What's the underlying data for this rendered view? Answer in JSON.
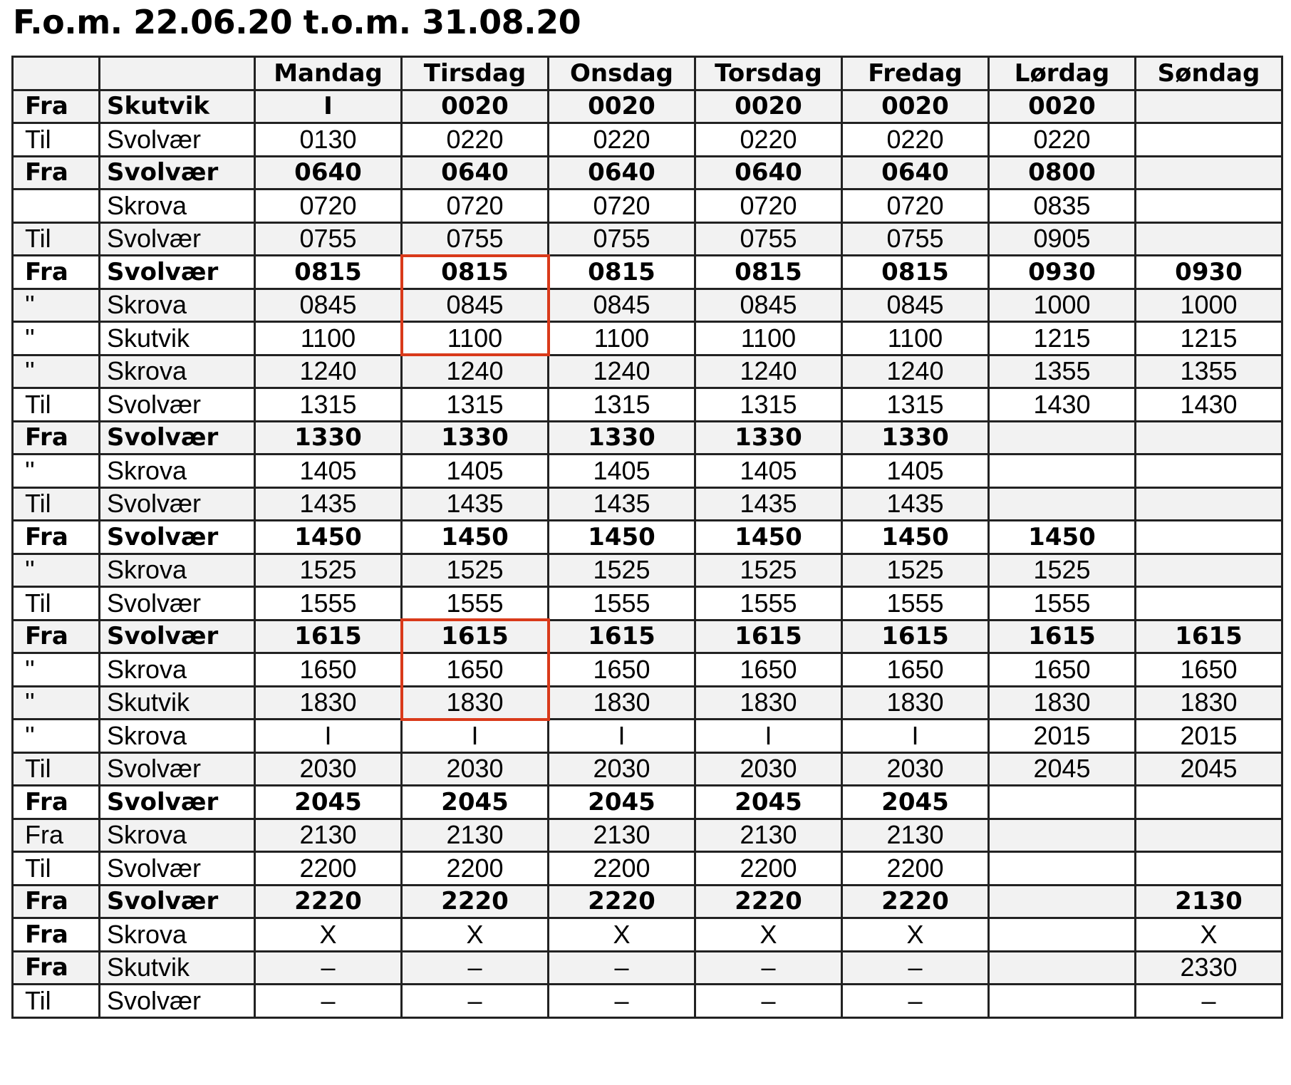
{
  "title": "F.o.m. 22.06.20 t.o.m. 31.08.20",
  "header": {
    "blank1": "",
    "blank2": "",
    "days": [
      "Mandag",
      "Tirsdag",
      "Onsdag",
      "Torsdag",
      "Fredag",
      "Lørdag",
      "Søndag"
    ]
  },
  "highlight_color": "#d93a1a",
  "highlighted_cells": [
    {
      "column": "Tirsdag",
      "rows": [
        6,
        7,
        8
      ]
    },
    {
      "column": "Tirsdag",
      "rows": [
        17,
        18,
        19
      ]
    }
  ],
  "rows": [
    {
      "bold": true,
      "dir": "Fra",
      "place": "Skutvik",
      "times": [
        "I",
        "0020",
        "0020",
        "0020",
        "0020",
        "0020",
        ""
      ]
    },
    {
      "bold": false,
      "dir": "Til",
      "place": "Svolvær",
      "times": [
        "0130",
        "0220",
        "0220",
        "0220",
        "0220",
        "0220",
        ""
      ]
    },
    {
      "bold": true,
      "dir": "Fra",
      "place": "Svolvær",
      "times": [
        "0640",
        "0640",
        "0640",
        "0640",
        "0640",
        "0800",
        ""
      ]
    },
    {
      "bold": false,
      "dir": "",
      "place": "Skrova",
      "times": [
        "0720",
        "0720",
        "0720",
        "0720",
        "0720",
        "0835",
        ""
      ]
    },
    {
      "bold": false,
      "dir": "Til",
      "place": "Svolvær",
      "times": [
        "0755",
        "0755",
        "0755",
        "0755",
        "0755",
        "0905",
        ""
      ]
    },
    {
      "bold": true,
      "dir": "Fra",
      "place": "Svolvær",
      "times": [
        "0815",
        "0815",
        "0815",
        "0815",
        "0815",
        "0930",
        "0930"
      ]
    },
    {
      "bold": false,
      "dir": "''",
      "place": "Skrova",
      "times": [
        "0845",
        "0845",
        "0845",
        "0845",
        "0845",
        "1000",
        "1000"
      ]
    },
    {
      "bold": false,
      "dir": "''",
      "place": "Skutvik",
      "times": [
        "1100",
        "1100",
        "1100",
        "1100",
        "1100",
        "1215",
        "1215"
      ]
    },
    {
      "bold": false,
      "dir": "''",
      "place": "Skrova",
      "times": [
        "1240",
        "1240",
        "1240",
        "1240",
        "1240",
        "1355",
        "1355"
      ]
    },
    {
      "bold": false,
      "dir": "Til",
      "place": "Svolvær",
      "times": [
        "1315",
        "1315",
        "1315",
        "1315",
        "1315",
        "1430",
        "1430"
      ]
    },
    {
      "bold": true,
      "dir": "Fra",
      "place": "Svolvær",
      "times": [
        "1330",
        "1330",
        "1330",
        "1330",
        "1330",
        "",
        ""
      ]
    },
    {
      "bold": false,
      "dir": "''",
      "place": "Skrova",
      "times": [
        "1405",
        "1405",
        "1405",
        "1405",
        "1405",
        "",
        ""
      ]
    },
    {
      "bold": false,
      "dir": "Til",
      "place": "Svolvær",
      "times": [
        "1435",
        "1435",
        "1435",
        "1435",
        "1435",
        "",
        ""
      ]
    },
    {
      "bold": true,
      "dir": "Fra",
      "place": "Svolvær",
      "times": [
        "1450",
        "1450",
        "1450",
        "1450",
        "1450",
        "1450",
        ""
      ]
    },
    {
      "bold": false,
      "dir": "''",
      "place": "Skrova",
      "times": [
        "1525",
        "1525",
        "1525",
        "1525",
        "1525",
        "1525",
        ""
      ]
    },
    {
      "bold": false,
      "dir": "Til",
      "place": "Svolvær",
      "times": [
        "1555",
        "1555",
        "1555",
        "1555",
        "1555",
        "1555",
        ""
      ]
    },
    {
      "bold": true,
      "dir": "Fra",
      "place": "Svolvær",
      "times": [
        "1615",
        "1615",
        "1615",
        "1615",
        "1615",
        "1615",
        "1615"
      ]
    },
    {
      "bold": false,
      "dir": "''",
      "place": "Skrova",
      "times": [
        "1650",
        "1650",
        "1650",
        "1650",
        "1650",
        "1650",
        "1650"
      ]
    },
    {
      "bold": false,
      "dir": "''",
      "place": "Skutvik",
      "times": [
        "1830",
        "1830",
        "1830",
        "1830",
        "1830",
        "1830",
        "1830"
      ]
    },
    {
      "bold": false,
      "dir": "''",
      "place": "Skrova",
      "times": [
        "I",
        "I",
        "I",
        "I",
        "I",
        "2015",
        "2015"
      ]
    },
    {
      "bold": false,
      "dir": "Til",
      "place": "Svolvær",
      "times": [
        "2030",
        "2030",
        "2030",
        "2030",
        "2030",
        "2045",
        "2045"
      ]
    },
    {
      "bold": true,
      "dir": "Fra",
      "place": "Svolvær",
      "times": [
        "2045",
        "2045",
        "2045",
        "2045",
        "2045",
        "",
        ""
      ]
    },
    {
      "bold": false,
      "dir": "Fra",
      "place": "Skrova",
      "times": [
        "2130",
        "2130",
        "2130",
        "2130",
        "2130",
        "",
        ""
      ]
    },
    {
      "bold": false,
      "dir": "Til",
      "place": "Svolvær",
      "times": [
        "2200",
        "2200",
        "2200",
        "2200",
        "2200",
        "",
        ""
      ]
    },
    {
      "bold": true,
      "dir": "Fra",
      "place": "Svolvær",
      "times": [
        "2220",
        "2220",
        "2220",
        "2220",
        "2220",
        "",
        "2130"
      ]
    },
    {
      "bold": false,
      "dirBold": true,
      "dir": "Fra",
      "place": "Skrova",
      "times": [
        "X",
        "X",
        "X",
        "X",
        "X",
        "",
        "X"
      ]
    },
    {
      "bold": false,
      "dirBold": true,
      "dir": "Fra",
      "place": "Skutvik",
      "times": [
        "–",
        "–",
        "–",
        "–",
        "–",
        "",
        "2330"
      ]
    },
    {
      "bold": false,
      "dir": "Til",
      "place": "Svolvær",
      "times": [
        "–",
        "–",
        "–",
        "–",
        "–",
        "",
        "–"
      ]
    }
  ]
}
